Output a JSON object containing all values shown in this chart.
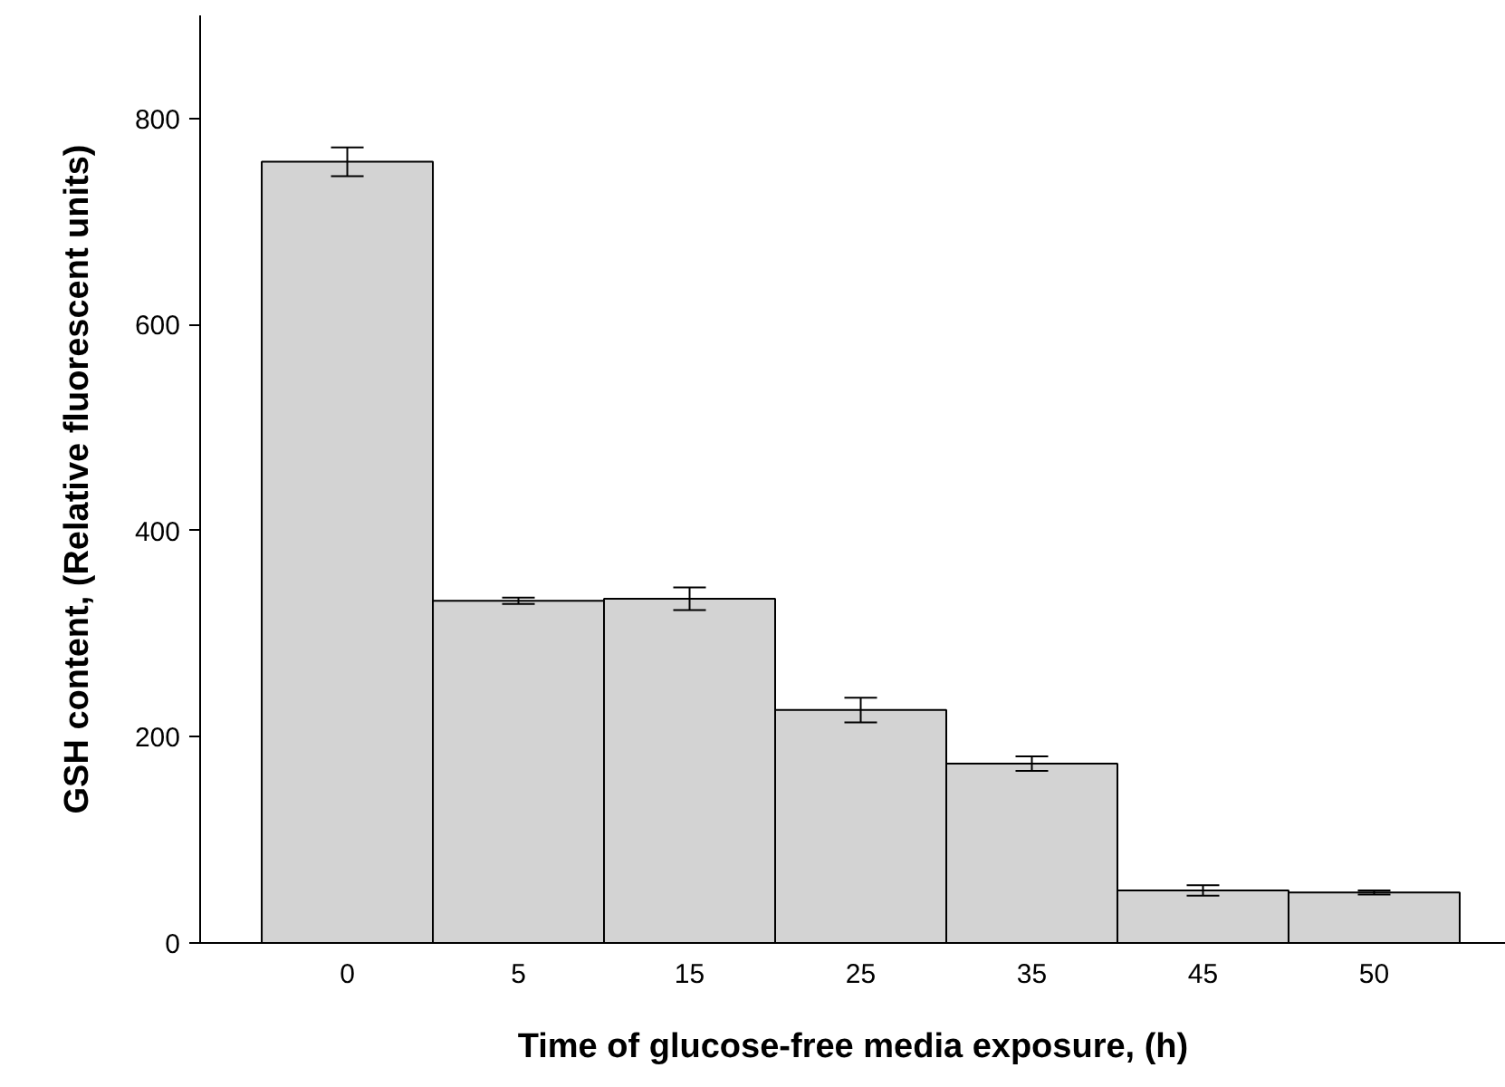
{
  "chart_data": {
    "type": "bar",
    "xlabel": "Time of glucose-free media exposure, (h)",
    "ylabel": "GSH content, (Relative fluorescent units)",
    "categories": [
      "0",
      "5",
      "15",
      "25",
      "35",
      "45",
      "50"
    ],
    "values": [
      758,
      332,
      334,
      226,
      174,
      51,
      49
    ],
    "errors": [
      14,
      3,
      11,
      12,
      7,
      5,
      2
    ],
    "color": "#d3d3d3",
    "ylim": [
      0,
      900
    ],
    "yticks": [
      0,
      200,
      400,
      600,
      800
    ],
    "grid": false
  }
}
